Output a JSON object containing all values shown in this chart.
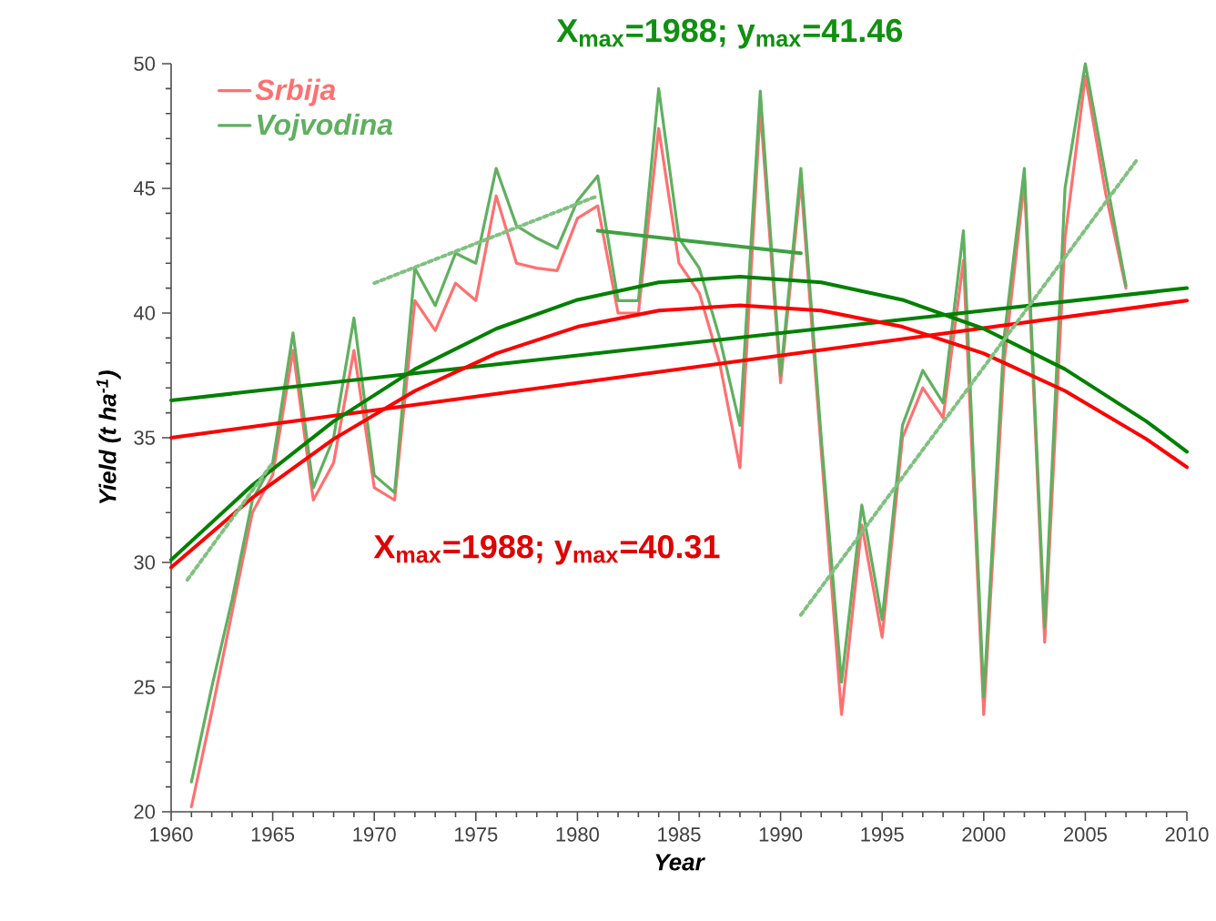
{
  "chart_data": {
    "type": "line",
    "xlabel": "Year",
    "ylabel": "Yield (t ha$^{-1}$)",
    "x": [
      1961,
      1962,
      1963,
      1964,
      1965,
      1966,
      1967,
      1968,
      1969,
      1970,
      1971,
      1972,
      1973,
      1974,
      1975,
      1976,
      1977,
      1978,
      1979,
      1980,
      1981,
      1982,
      1983,
      1984,
      1985,
      1986,
      1987,
      1988,
      1989,
      1990,
      1991,
      1992,
      1993,
      1994,
      1995,
      1996,
      1997,
      1998,
      1999,
      2000,
      2001,
      2002,
      2003,
      2004,
      2005,
      2006,
      2007
    ],
    "series": [
      {
        "name": "Srbija",
        "color": "#ff7070",
        "values": [
          20.2,
          24,
          28,
          32,
          33.5,
          38.5,
          32.5,
          34,
          38.5,
          33,
          32.5,
          40.5,
          39.3,
          41.2,
          40.5,
          44.7,
          42,
          41.8,
          41.7,
          43.8,
          44.3,
          40,
          40,
          47.4,
          42,
          40.8,
          38,
          33.8,
          48.2,
          37.2,
          45.3,
          34.5,
          23.9,
          31.5,
          27,
          35,
          37,
          35.8,
          42.1,
          23.9,
          38,
          45.3,
          26.8,
          43,
          49.5,
          44.8,
          41
        ]
      },
      {
        "name": "Vojvodina",
        "color": "#5fb05f",
        "values": [
          21.2,
          25,
          28.5,
          32.5,
          34,
          39.2,
          33,
          35,
          39.8,
          33.5,
          32.8,
          41.8,
          40.3,
          42.4,
          42,
          45.8,
          43.5,
          43,
          42.6,
          44.5,
          45.5,
          40.5,
          40.5,
          49,
          43,
          41.8,
          39,
          35.5,
          48.9,
          37.5,
          45.8,
          35,
          25.2,
          32.3,
          27.7,
          35.5,
          37.7,
          36.4,
          43.3,
          24.6,
          39,
          45.8,
          27.4,
          45,
          50,
          45.5,
          41.1
        ]
      },
      {
        "color": "#ff0000",
        "x": [
          1960,
          2010
        ],
        "values": [
          35.0,
          40.5
        ]
      },
      {
        "color": "#008000",
        "x": [
          1960,
          2010
        ],
        "values": [
          36.5,
          41.0
        ]
      },
      {
        "color": "#ff0000",
        "x": [
          1960,
          1964,
          1968,
          1972,
          1976,
          1980,
          1984,
          1988,
          1992,
          1996,
          2000,
          2004,
          2008,
          2010
        ],
        "values": [
          29.8,
          32.6,
          34.95,
          36.88,
          38.38,
          39.45,
          40.1,
          40.31,
          40.1,
          39.45,
          38.38,
          36.88,
          34.95,
          33.82
        ]
      },
      {
        "color": "#008000",
        "x": [
          1960,
          1964,
          1968,
          1972,
          1976,
          1980,
          1984,
          1988,
          1992,
          1996,
          2000,
          2004,
          2008,
          2010
        ],
        "values": [
          30.1,
          33.1,
          35.66,
          37.75,
          39.37,
          40.53,
          41.23,
          41.46,
          41.23,
          40.53,
          39.37,
          37.75,
          35.66,
          34.44
        ]
      },
      {
        "color": "#80c080",
        "line_style": "dotted",
        "x": [
          1960.8,
          1965
        ],
        "values": [
          29.3,
          34
        ]
      },
      {
        "color": "#80c080",
        "line_style": "dotted",
        "x": [
          1970,
          1981
        ],
        "values": [
          41.2,
          44.7
        ]
      },
      {
        "color": "#40a040",
        "x": [
          1981,
          1991
        ],
        "values": [
          43.3,
          42.4
        ]
      },
      {
        "color": "#80c080",
        "line_style": "dotted",
        "x": [
          1991,
          2007.5
        ],
        "values": [
          27.9,
          46.1
        ]
      }
    ],
    "annotations": [
      "X$_{max}$=1988; y$_{max}$=40.31",
      "X$_{max}$=1988; y$_{max}$=41.46"
    ],
    "xlim": [
      1960,
      2010
    ],
    "xticks": [
      1960,
      1965,
      1970,
      1975,
      1980,
      1985,
      1990,
      1995,
      2000,
      2005,
      2010
    ],
    "ylim": [
      20,
      50
    ],
    "yticks": [
      20,
      25,
      30,
      35,
      40,
      45,
      50
    ],
    "grid": false,
    "legend": "top left",
    "line_style": "solid",
    "marker": "none"
  }
}
